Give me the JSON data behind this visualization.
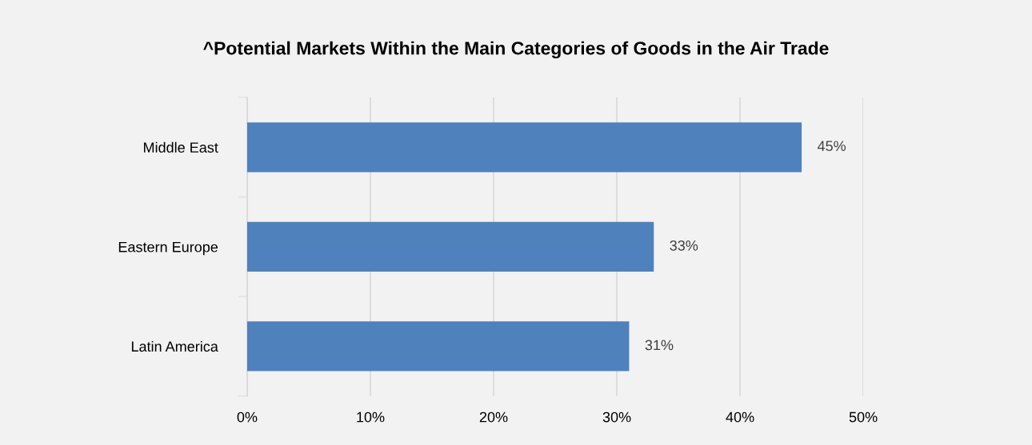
{
  "chart_data": {
    "type": "bar",
    "orientation": "horizontal",
    "title": "^Potential Markets Within the Main Categories of Goods in the Air Trade",
    "categories": [
      "Middle East",
      "Eastern Europe",
      "Latin America"
    ],
    "values": [
      45,
      33,
      31
    ],
    "value_labels": [
      "45%",
      "33%",
      "31%"
    ],
    "color": "#4f81bd",
    "xlim": [
      0,
      50
    ],
    "xticks": [
      {
        "value": 0,
        "label": "0%"
      },
      {
        "value": 10,
        "label": "10%"
      },
      {
        "value": 20,
        "label": "20%"
      },
      {
        "value": 30,
        "label": "30%"
      },
      {
        "value": 40,
        "label": "40%"
      },
      {
        "value": 50,
        "label": "50%"
      }
    ],
    "grid": "x",
    "legend": false
  }
}
